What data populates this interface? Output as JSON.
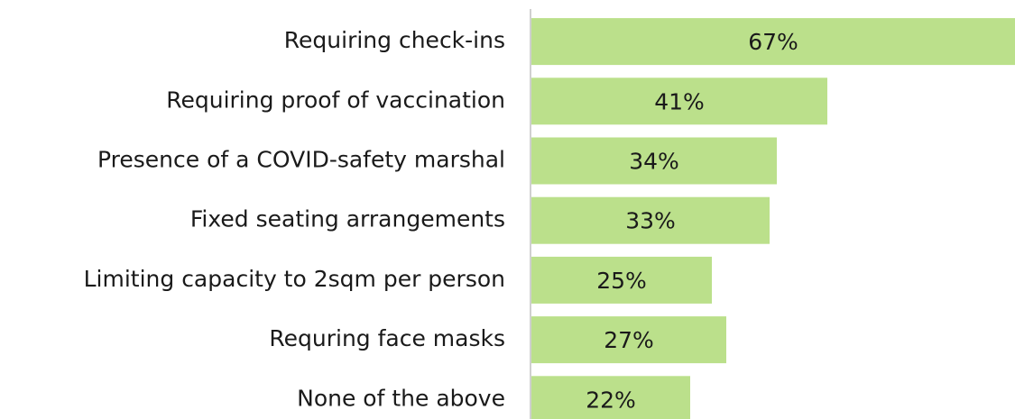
{
  "chart_data": {
    "type": "bar",
    "orientation": "horizontal",
    "categories": [
      "Requiring check-ins",
      "Requiring proof of vaccination",
      "Presence of a COVID-safety marshal",
      "Fixed seating arrangements",
      "Limiting capacity to 2sqm per person",
      "Requring face masks",
      "None of the above"
    ],
    "values": [
      67,
      41,
      34,
      33,
      25,
      27,
      22
    ],
    "value_labels": [
      "67%",
      "41%",
      "34%",
      "33%",
      "25%",
      "27%",
      "22%"
    ],
    "color": "#bbe08b"
  }
}
